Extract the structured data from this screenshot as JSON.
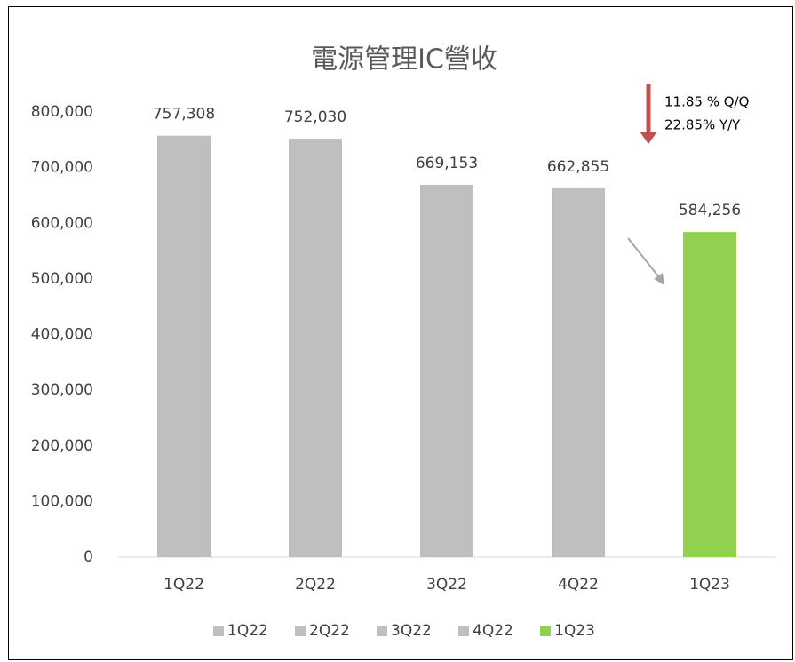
{
  "chart_data": {
    "type": "bar",
    "title": "電源管理IC營收",
    "categories": [
      "1Q22",
      "2Q22",
      "3Q22",
      "4Q22",
      "1Q23"
    ],
    "series": [
      {
        "name": "1Q22",
        "color": "#bfbfbf",
        "values": [
          757308,
          null,
          null,
          null,
          null
        ],
        "value_labels": [
          "757,308",
          null,
          null,
          null,
          null
        ]
      },
      {
        "name": "2Q22",
        "color": "#bfbfbf",
        "values": [
          null,
          752030,
          null,
          null,
          null
        ],
        "value_labels": [
          null,
          "752,030",
          null,
          null,
          null
        ]
      },
      {
        "name": "3Q22",
        "color": "#bfbfbf",
        "values": [
          null,
          null,
          669153,
          null,
          null
        ],
        "value_labels": [
          null,
          null,
          "669,153",
          null,
          null
        ]
      },
      {
        "name": "4Q22",
        "color": "#bfbfbf",
        "values": [
          null,
          null,
          null,
          662855,
          null
        ],
        "value_labels": [
          null,
          null,
          null,
          "662,855",
          null
        ]
      },
      {
        "name": "1Q23",
        "color": "#92d050",
        "values": [
          null,
          null,
          null,
          null,
          584256
        ],
        "value_labels": [
          null,
          null,
          null,
          null,
          "584,256"
        ]
      }
    ],
    "annotations": [
      "11.85 % Q/Q",
      "22.85% Y/Y"
    ],
    "ylim": [
      0,
      800000
    ],
    "yticks": [
      0,
      {
        "value": 100000,
        "label": "100,000"
      },
      {
        "value": 200000,
        "label": "200,000"
      },
      {
        "value": 300000,
        "label": "300,000"
      },
      {
        "value": 400000,
        "label": "400,000"
      },
      {
        "value": 500000,
        "label": "500,000"
      },
      {
        "value": 600000,
        "label": "600,000"
      },
      {
        "value": 700000,
        "label": "700,000"
      },
      {
        "value": 800000,
        "label": "800,000"
      }
    ],
    "grid": false,
    "legend": "bottom"
  }
}
